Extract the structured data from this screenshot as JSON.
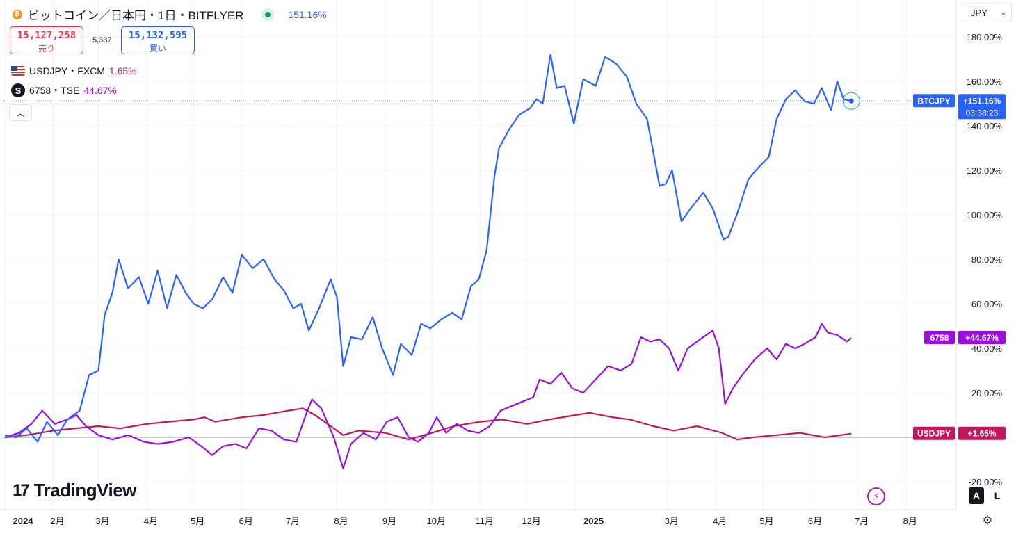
{
  "header": {
    "title": "ビットコイン／日本円・1日・BITFLYER",
    "coin_icon": "bitcoin-icon",
    "change_pct": "151.16%",
    "sell_price": "15,127,258",
    "sell_label": "売り",
    "spread": "5,337",
    "buy_price": "15,132,595",
    "buy_label": "買い",
    "currency": "JPY"
  },
  "legend": [
    {
      "symbol": "USDJPY・FXCM",
      "value": "1.65%",
      "color": "#c2185b",
      "icon": "us-flag-icon"
    },
    {
      "symbol": "6758・TSE",
      "value": "44.67%",
      "color": "#9c0de2",
      "icon": "sony-s-icon"
    }
  ],
  "brand": {
    "name": "TradingView"
  },
  "controls": {
    "auto_label": "A",
    "log_label": "L"
  },
  "chart_data": {
    "type": "line",
    "yaxis": {
      "min": -20,
      "max": 190,
      "ticks": [
        "180.00%",
        "160.00%",
        "140.00%",
        "120.00%",
        "100.00%",
        "80.00%",
        "60.00%",
        "40.00%",
        "20.00%",
        "-20.00%"
      ],
      "tick_values": [
        180,
        160,
        140,
        120,
        100,
        80,
        60,
        40,
        20,
        -20
      ]
    },
    "xaxis": {
      "start": "2024-01-01",
      "end": "2025-08-31",
      "ticks": [
        {
          "date": "2024-01-01",
          "label": "2024"
        },
        {
          "date": "2024-02-01",
          "label": "2月"
        },
        {
          "date": "2024-03-01",
          "label": "3月"
        },
        {
          "date": "2024-04-01",
          "label": "4月"
        },
        {
          "date": "2024-05-01",
          "label": "5月"
        },
        {
          "date": "2024-06-01",
          "label": "6月"
        },
        {
          "date": "2024-07-01",
          "label": "7月"
        },
        {
          "date": "2024-08-01",
          "label": "8月"
        },
        {
          "date": "2024-09-01",
          "label": "9月"
        },
        {
          "date": "2024-10-01",
          "label": "10月"
        },
        {
          "date": "2024-11-01",
          "label": "11月"
        },
        {
          "date": "2024-12-01",
          "label": "12月"
        },
        {
          "date": "2025-01-01",
          "label": "2025"
        },
        {
          "date": "2025-03-01",
          "label": "3月"
        },
        {
          "date": "2025-04-01",
          "label": "4月"
        },
        {
          "date": "2025-05-01",
          "label": "5月"
        },
        {
          "date": "2025-06-01",
          "label": "6月"
        },
        {
          "date": "2025-07-01",
          "label": "7月"
        },
        {
          "date": "2025-08-01",
          "label": "8月"
        }
      ]
    },
    "series": [
      {
        "name": "BTCJPY",
        "color": "#2962ff",
        "last_label": "+151.16%",
        "countdown": "03:38:23",
        "points": [
          [
            "2024-01-01",
            1
          ],
          [
            "2024-01-08",
            0
          ],
          [
            "2024-01-15",
            4
          ],
          [
            "2024-01-22",
            -2
          ],
          [
            "2024-01-28",
            7
          ],
          [
            "2024-02-04",
            1
          ],
          [
            "2024-02-10",
            8
          ],
          [
            "2024-02-18",
            12
          ],
          [
            "2024-02-24",
            28
          ],
          [
            "2024-03-01",
            30
          ],
          [
            "2024-03-05",
            55
          ],
          [
            "2024-03-10",
            65
          ],
          [
            "2024-03-14",
            80
          ],
          [
            "2024-03-20",
            67
          ],
          [
            "2024-03-27",
            72
          ],
          [
            "2024-04-02",
            60
          ],
          [
            "2024-04-08",
            75
          ],
          [
            "2024-04-14",
            58
          ],
          [
            "2024-04-20",
            73
          ],
          [
            "2024-04-26",
            65
          ],
          [
            "2024-05-01",
            60
          ],
          [
            "2024-05-07",
            58
          ],
          [
            "2024-05-13",
            62
          ],
          [
            "2024-05-20",
            72
          ],
          [
            "2024-05-26",
            65
          ],
          [
            "2024-06-01",
            82
          ],
          [
            "2024-06-08",
            76
          ],
          [
            "2024-06-15",
            80
          ],
          [
            "2024-06-22",
            71
          ],
          [
            "2024-06-28",
            66
          ],
          [
            "2024-07-04",
            58
          ],
          [
            "2024-07-09",
            60
          ],
          [
            "2024-07-14",
            48
          ],
          [
            "2024-07-20",
            57
          ],
          [
            "2024-07-28",
            71
          ],
          [
            "2024-08-01",
            63
          ],
          [
            "2024-08-05",
            32
          ],
          [
            "2024-08-10",
            45
          ],
          [
            "2024-08-17",
            44
          ],
          [
            "2024-08-24",
            54
          ],
          [
            "2024-08-30",
            40
          ],
          [
            "2024-09-06",
            28
          ],
          [
            "2024-09-11",
            42
          ],
          [
            "2024-09-18",
            37
          ],
          [
            "2024-09-24",
            51
          ],
          [
            "2024-09-30",
            49
          ],
          [
            "2024-10-07",
            53
          ],
          [
            "2024-10-14",
            56
          ],
          [
            "2024-10-20",
            53
          ],
          [
            "2024-10-26",
            68
          ],
          [
            "2024-10-31",
            71
          ],
          [
            "2024-11-05",
            84
          ],
          [
            "2024-11-10",
            117
          ],
          [
            "2024-11-13",
            130
          ],
          [
            "2024-11-20",
            139
          ],
          [
            "2024-11-26",
            145
          ],
          [
            "2024-12-03",
            148
          ],
          [
            "2024-12-07",
            152
          ],
          [
            "2024-12-11",
            150
          ],
          [
            "2024-12-16",
            172
          ],
          [
            "2024-12-20",
            157
          ],
          [
            "2024-12-25",
            158
          ],
          [
            "2024-12-31",
            141
          ],
          [
            "2025-01-06",
            161
          ],
          [
            "2025-01-14",
            158
          ],
          [
            "2025-01-20",
            171
          ],
          [
            "2025-01-27",
            168
          ],
          [
            "2025-02-03",
            162
          ],
          [
            "2025-02-09",
            150
          ],
          [
            "2025-02-16",
            143
          ],
          [
            "2025-02-24",
            113
          ],
          [
            "2025-02-28",
            114
          ],
          [
            "2025-03-04",
            120
          ],
          [
            "2025-03-10",
            97
          ],
          [
            "2025-03-16",
            103
          ],
          [
            "2025-03-24",
            110
          ],
          [
            "2025-03-30",
            103
          ],
          [
            "2025-04-06",
            89
          ],
          [
            "2025-04-09",
            90
          ],
          [
            "2025-04-15",
            101
          ],
          [
            "2025-04-22",
            116
          ],
          [
            "2025-04-28",
            121
          ],
          [
            "2025-05-05",
            126
          ],
          [
            "2025-05-10",
            143
          ],
          [
            "2025-05-16",
            152
          ],
          [
            "2025-05-22",
            156
          ],
          [
            "2025-05-28",
            151
          ],
          [
            "2025-06-03",
            150
          ],
          [
            "2025-06-08",
            157
          ],
          [
            "2025-06-14",
            147
          ],
          [
            "2025-06-18",
            160
          ],
          [
            "2025-06-22",
            152
          ],
          [
            "2025-06-27",
            151.16
          ]
        ]
      },
      {
        "name": "6758",
        "color": "#9c0de2",
        "last_label": "+44.67%",
        "points": [
          [
            "2024-01-01",
            0
          ],
          [
            "2024-01-10",
            2
          ],
          [
            "2024-01-18",
            6
          ],
          [
            "2024-01-25",
            12
          ],
          [
            "2024-02-02",
            6
          ],
          [
            "2024-02-10",
            8
          ],
          [
            "2024-02-16",
            10
          ],
          [
            "2024-02-22",
            5
          ],
          [
            "2024-03-01",
            1
          ],
          [
            "2024-03-10",
            -1
          ],
          [
            "2024-03-20",
            1
          ],
          [
            "2024-03-30",
            -2
          ],
          [
            "2024-04-08",
            -3
          ],
          [
            "2024-04-18",
            -2
          ],
          [
            "2024-04-28",
            0
          ],
          [
            "2024-05-06",
            -4
          ],
          [
            "2024-05-13",
            -8
          ],
          [
            "2024-05-20",
            -4
          ],
          [
            "2024-05-28",
            -3
          ],
          [
            "2024-06-04",
            -5
          ],
          [
            "2024-06-12",
            4
          ],
          [
            "2024-06-20",
            3
          ],
          [
            "2024-06-28",
            -1
          ],
          [
            "2024-07-06",
            -2
          ],
          [
            "2024-07-12",
            10
          ],
          [
            "2024-07-16",
            17
          ],
          [
            "2024-07-22",
            13
          ],
          [
            "2024-07-30",
            0
          ],
          [
            "2024-08-05",
            -14
          ],
          [
            "2024-08-10",
            -3
          ],
          [
            "2024-08-18",
            2
          ],
          [
            "2024-08-26",
            -1
          ],
          [
            "2024-09-02",
            7
          ],
          [
            "2024-09-09",
            9
          ],
          [
            "2024-09-16",
            0
          ],
          [
            "2024-09-22",
            -2
          ],
          [
            "2024-09-29",
            2
          ],
          [
            "2024-10-04",
            9
          ],
          [
            "2024-10-10",
            2
          ],
          [
            "2024-10-17",
            6
          ],
          [
            "2024-10-24",
            3
          ],
          [
            "2024-10-31",
            2
          ],
          [
            "2024-11-07",
            5
          ],
          [
            "2024-11-14",
            12
          ],
          [
            "2024-11-21",
            14
          ],
          [
            "2024-11-28",
            16
          ],
          [
            "2024-12-05",
            18
          ],
          [
            "2024-12-09",
            26
          ],
          [
            "2024-12-16",
            24
          ],
          [
            "2024-12-23",
            29
          ],
          [
            "2024-12-30",
            22
          ],
          [
            "2025-01-06",
            20
          ],
          [
            "2025-01-14",
            26
          ],
          [
            "2025-01-22",
            32
          ],
          [
            "2025-01-30",
            30
          ],
          [
            "2025-02-06",
            33
          ],
          [
            "2025-02-12",
            45
          ],
          [
            "2025-02-18",
            43
          ],
          [
            "2025-02-24",
            44
          ],
          [
            "2025-03-02",
            40
          ],
          [
            "2025-03-08",
            30
          ],
          [
            "2025-03-14",
            40
          ],
          [
            "2025-03-22",
            44
          ],
          [
            "2025-03-30",
            48
          ],
          [
            "2025-04-03",
            40
          ],
          [
            "2025-04-07",
            15
          ],
          [
            "2025-04-12",
            22
          ],
          [
            "2025-04-18",
            28
          ],
          [
            "2025-04-26",
            35
          ],
          [
            "2025-05-04",
            40
          ],
          [
            "2025-05-10",
            35
          ],
          [
            "2025-05-16",
            42
          ],
          [
            "2025-05-22",
            40
          ],
          [
            "2025-05-28",
            42
          ],
          [
            "2025-06-04",
            45
          ],
          [
            "2025-06-08",
            51
          ],
          [
            "2025-06-12",
            47
          ],
          [
            "2025-06-18",
            46
          ],
          [
            "2025-06-24",
            43
          ],
          [
            "2025-06-27",
            44.67
          ]
        ]
      },
      {
        "name": "USDJPY",
        "color": "#c2185b",
        "last_label": "+1.65%",
        "points": [
          [
            "2024-01-01",
            0
          ],
          [
            "2024-01-15",
            1
          ],
          [
            "2024-02-01",
            3
          ],
          [
            "2024-02-15",
            4
          ],
          [
            "2024-03-01",
            5
          ],
          [
            "2024-03-15",
            4
          ],
          [
            "2024-04-01",
            6
          ],
          [
            "2024-04-15",
            7
          ],
          [
            "2024-05-01",
            8
          ],
          [
            "2024-05-08",
            9
          ],
          [
            "2024-05-15",
            7
          ],
          [
            "2024-06-01",
            9
          ],
          [
            "2024-06-15",
            10
          ],
          [
            "2024-07-01",
            12
          ],
          [
            "2024-07-10",
            13
          ],
          [
            "2024-07-18",
            10
          ],
          [
            "2024-08-05",
            1
          ],
          [
            "2024-08-15",
            3
          ],
          [
            "2024-09-01",
            2
          ],
          [
            "2024-09-16",
            -1
          ],
          [
            "2024-10-01",
            2
          ],
          [
            "2024-10-15",
            5
          ],
          [
            "2024-11-01",
            7
          ],
          [
            "2024-11-15",
            8
          ],
          [
            "2024-12-01",
            6
          ],
          [
            "2024-12-15",
            8
          ],
          [
            "2025-01-01",
            10
          ],
          [
            "2025-01-10",
            11
          ],
          [
            "2025-01-25",
            9
          ],
          [
            "2025-02-05",
            8
          ],
          [
            "2025-02-20",
            5
          ],
          [
            "2025-03-05",
            3
          ],
          [
            "2025-03-20",
            5
          ],
          [
            "2025-04-05",
            2
          ],
          [
            "2025-04-15",
            -1
          ],
          [
            "2025-04-25",
            0
          ],
          [
            "2025-05-10",
            1
          ],
          [
            "2025-05-25",
            2
          ],
          [
            "2025-06-10",
            0
          ],
          [
            "2025-06-27",
            1.65
          ]
        ]
      }
    ],
    "zero_line": 0
  }
}
